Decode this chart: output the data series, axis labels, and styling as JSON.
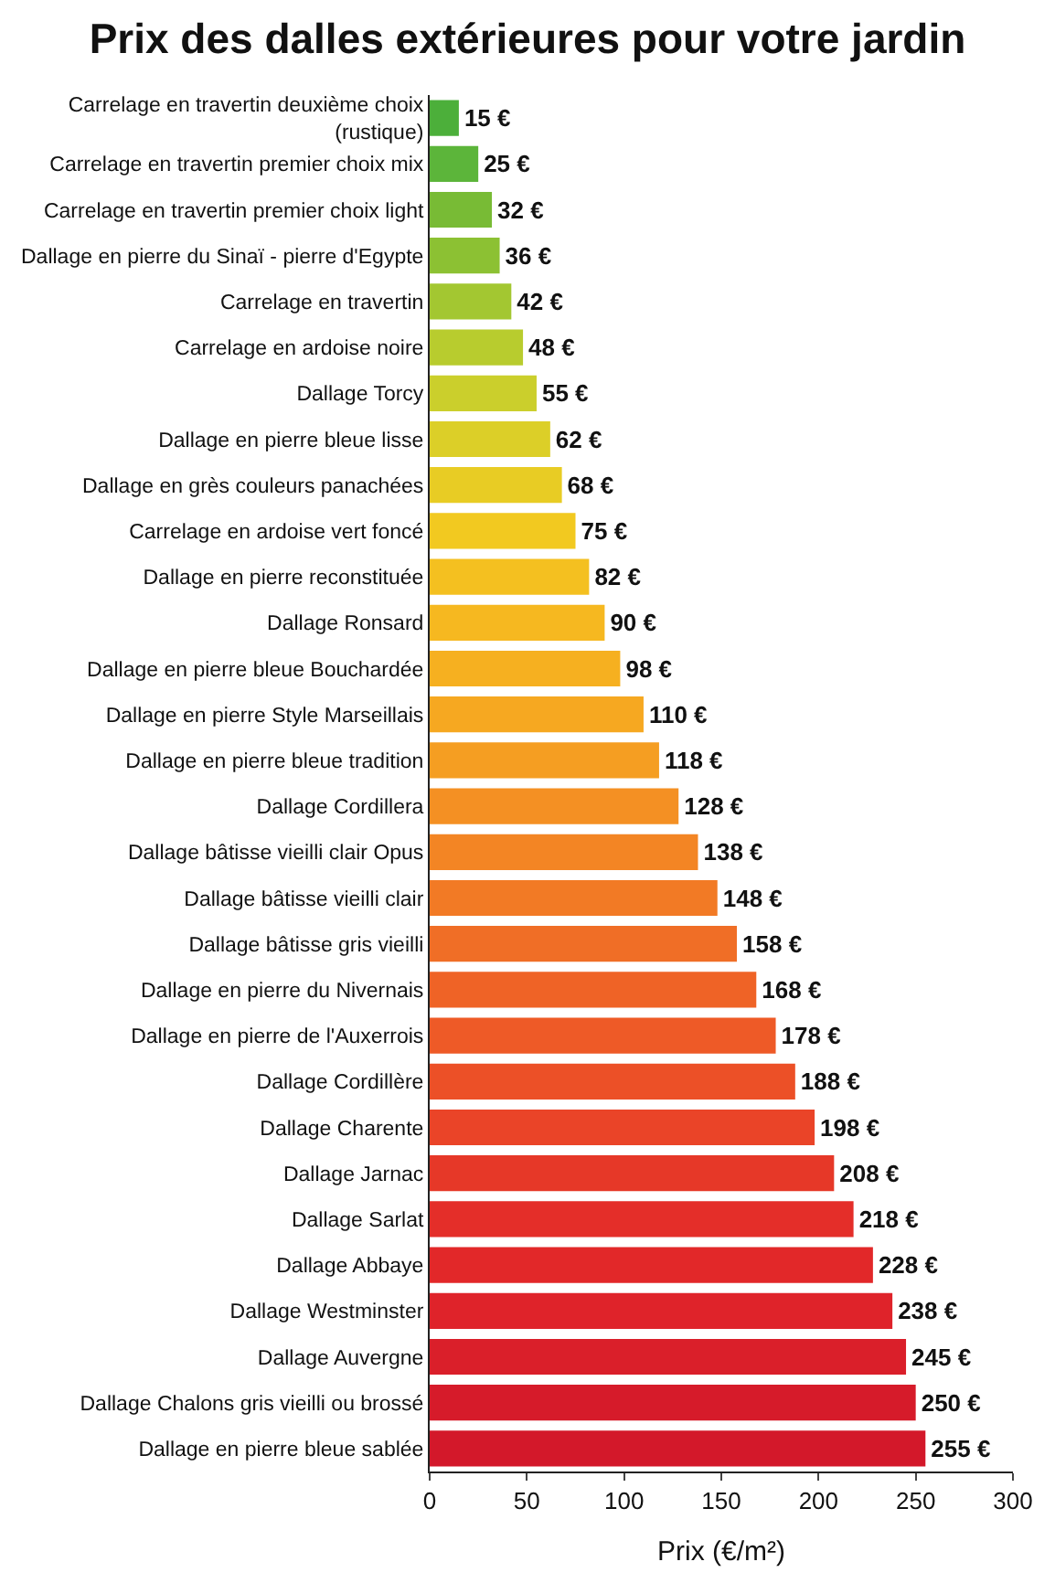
{
  "chart_data": {
    "type": "bar",
    "orientation": "horizontal",
    "title": "Prix des dalles extérieures pour votre jardin",
    "xlabel": "Prix (€/m²)",
    "categories": [
      "Carrelage en travertin deuxième choix\n(rustique)",
      "Carrelage en travertin premier choix mix",
      "Carrelage en travertin premier choix light",
      "Dallage en pierre du Sinaï - pierre d'Egypte",
      "Carrelage en travertin",
      "Carrelage en ardoise noire",
      "Dallage Torcy",
      "Dallage en pierre bleue lisse",
      "Dallage en grès couleurs panachées",
      "Carrelage en ardoise vert foncé",
      "Dallage en pierre reconstituée",
      "Dallage Ronsard",
      "Dallage en pierre bleue Bouchardée",
      "Dallage en pierre Style Marseillais",
      "Dallage en pierre bleue tradition",
      "Dallage Cordillera",
      "Dallage bâtisse vieilli clair Opus",
      "Dallage bâtisse vieilli clair",
      "Dallage bâtisse gris vieilli",
      "Dallage en pierre du Nivernais",
      "Dallage en pierre de l'Auxerrois",
      "Dallage Cordillère",
      "Dallage Charente",
      "Dallage Jarnac",
      "Dallage Sarlat",
      "Dallage Abbaye",
      "Dallage Westminster",
      "Dallage Auvergne",
      "Dallage Chalons gris vieilli ou brossé",
      "Dallage en pierre bleue sablée"
    ],
    "values": [
      15,
      25,
      32,
      36,
      42,
      48,
      55,
      62,
      68,
      75,
      82,
      90,
      98,
      110,
      118,
      128,
      138,
      148,
      158,
      168,
      178,
      188,
      198,
      208,
      218,
      228,
      238,
      245,
      250,
      255
    ],
    "value_labels": [
      "15 €",
      "25 €",
      "32 €",
      "36 €",
      "42 €",
      "48 €",
      "55 €",
      "62 €",
      "68 €",
      "75 €",
      "82 €",
      "90 €",
      "98 €",
      "110 €",
      "118 €",
      "128 €",
      "138 €",
      "148 €",
      "158 €",
      "168 €",
      "178 €",
      "188 €",
      "198 €",
      "208 €",
      "218 €",
      "228 €",
      "238 €",
      "245 €",
      "250 €",
      "255 €"
    ],
    "colors": [
      "#4caf3a",
      "#5cb53a",
      "#78bb35",
      "#8cc133",
      "#a3c731",
      "#b8cc2e",
      "#cbcf2c",
      "#dccf28",
      "#e8cc24",
      "#f2c920",
      "#f4c020",
      "#f6b820",
      "#f6b020",
      "#f6a821",
      "#f59e22",
      "#f49023",
      "#f38524",
      "#f27a25",
      "#f06e26",
      "#ef6326",
      "#ee5a27",
      "#ec5027",
      "#ea4428",
      "#e63828",
      "#e42e29",
      "#e22829",
      "#df232a",
      "#da1f2a",
      "#d61b2a",
      "#d3182a"
    ],
    "xlim": [
      0,
      300
    ],
    "xticks": [
      0,
      50,
      100,
      150,
      200,
      250,
      300
    ]
  }
}
